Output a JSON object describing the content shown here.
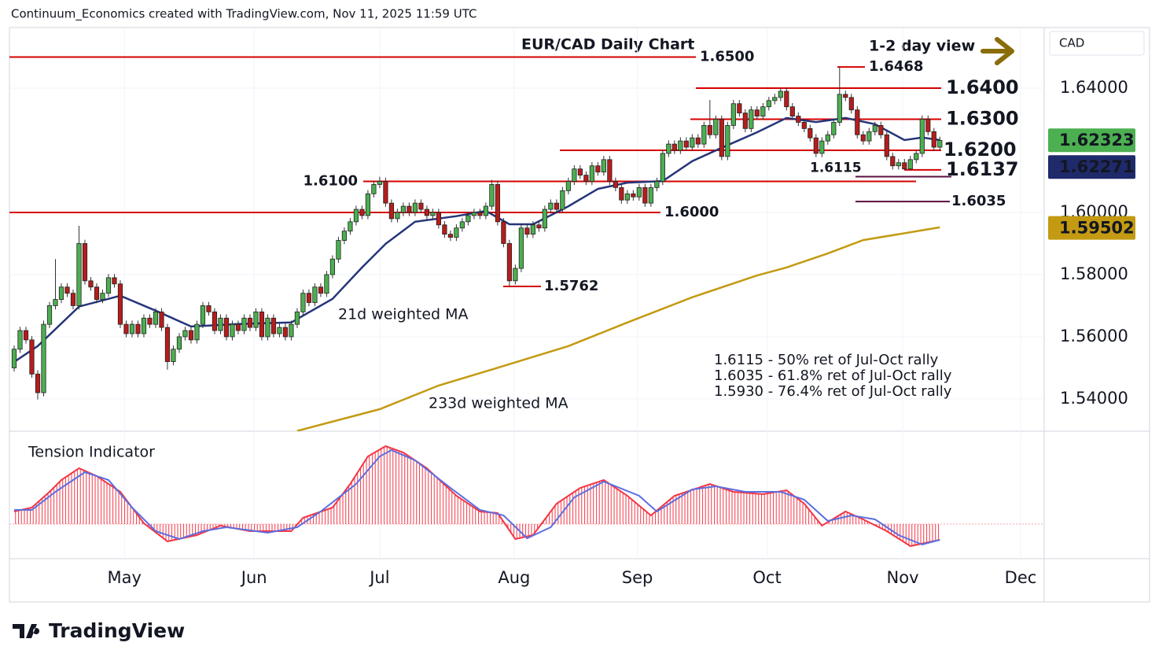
{
  "header": "Continuum_Economics created with TradingView.com, Nov 11, 2025 11:59 UTC",
  "brand": "TradingView",
  "chart_data": {
    "type": "candlestick",
    "title": "EUR/CAD Daily Chart",
    "subtitle": "1-2 day view",
    "currency": "CAD",
    "grid": true,
    "xlim": [
      -0.8,
      174.7
    ],
    "xticks": [
      {
        "value": 18.7,
        "label": "May"
      },
      {
        "value": 40.7,
        "label": "Jun"
      },
      {
        "value": 62,
        "label": "Jul"
      },
      {
        "value": 84.8,
        "label": "Aug"
      },
      {
        "value": 105.7,
        "label": "Sep"
      },
      {
        "value": 127.7,
        "label": "Oct"
      },
      {
        "value": 150.7,
        "label": "Nov"
      },
      {
        "value": 170.7,
        "label": "Dec"
      }
    ],
    "ylim": [
      1.5296,
      1.6595
    ],
    "yticks": [
      {
        "value": 1.64,
        "label": "1.64000"
      },
      {
        "value": 1.6,
        "label": "1.60000"
      },
      {
        "value": 1.58,
        "label": "1.58000"
      },
      {
        "value": 1.56,
        "label": "1.56000"
      },
      {
        "value": 1.54,
        "label": "1.54000"
      }
    ],
    "colors": {
      "up": "#4caf50",
      "down": "#b71c1c"
    },
    "open": [
      1.55,
      1.556,
      1.562,
      1.559,
      1.548,
      1.542,
      1.564,
      1.57,
      1.572,
      1.576,
      1.574,
      1.57,
      1.59,
      1.578,
      1.576,
      1.572,
      1.574,
      1.579,
      1.577,
      1.564,
      1.561,
      1.564,
      1.561,
      1.566,
      1.564,
      1.568,
      1.563,
      1.552,
      1.556,
      1.56,
      1.562,
      1.559,
      1.564,
      1.57,
      1.568,
      1.562,
      1.566,
      1.56,
      1.564,
      1.562,
      1.566,
      1.563,
      1.568,
      1.56,
      1.566,
      1.561,
      1.563,
      1.56,
      1.564,
      1.568,
      1.574,
      1.571,
      1.576,
      1.574,
      1.58,
      1.585,
      1.591,
      1.594,
      1.597,
      1.601,
      1.599,
      1.606,
      1.609,
      1.61,
      1.603,
      1.598,
      1.6,
      1.602,
      1.6,
      1.603,
      1.601,
      1.599,
      1.6,
      1.596,
      1.593,
      1.592,
      1.595,
      1.597,
      1.599,
      1.6,
      1.599,
      1.602,
      1.609,
      1.597,
      1.59,
      1.578,
      1.582,
      1.595,
      1.593,
      1.596,
      1.595,
      1.601,
      1.603,
      1.601,
      1.607,
      1.61,
      1.614,
      1.612,
      1.61,
      1.615,
      1.613,
      1.617,
      1.61,
      1.608,
      1.604,
      1.606,
      1.605,
      1.608,
      1.603,
      1.608,
      1.61,
      1.619,
      1.622,
      1.62,
      1.623,
      1.621,
      1.624,
      1.622,
      1.628,
      1.625,
      1.63,
      1.618,
      1.628,
      1.635,
      1.632,
      1.627,
      1.633,
      1.631,
      1.634,
      1.636,
      1.637,
      1.639,
      1.634,
      1.631,
      1.629,
      1.627,
      1.624,
      1.619,
      1.623,
      1.625,
      1.629,
      1.638,
      1.637,
      1.633,
      1.625,
      1.623,
      1.626,
      1.628,
      1.625,
      1.618,
      1.615,
      1.616,
      1.614,
      1.617,
      1.619,
      1.63,
      1.626,
      1.621
    ],
    "high": [
      1.5572,
      1.5632,
      1.5632,
      1.5602,
      1.5492,
      1.5652,
      1.5712,
      1.585,
      1.5772,
      1.5772,
      1.5752,
      1.5957,
      1.5912,
      1.5792,
      1.5772,
      1.5752,
      1.5802,
      1.5802,
      1.5782,
      1.5652,
      1.5652,
      1.5652,
      1.5672,
      1.5672,
      1.5692,
      1.5692,
      1.5642,
      1.5572,
      1.5612,
      1.5632,
      1.5632,
      1.5652,
      1.5712,
      1.5712,
      1.5692,
      1.5672,
      1.5672,
      1.5652,
      1.5652,
      1.5672,
      1.5672,
      1.5692,
      1.5692,
      1.5672,
      1.5672,
      1.5642,
      1.5642,
      1.5652,
      1.5692,
      1.5752,
      1.5752,
      1.5772,
      1.5772,
      1.5812,
      1.5862,
      1.5922,
      1.5952,
      1.5982,
      1.6022,
      1.6022,
      1.6072,
      1.6102,
      1.6115,
      1.6112,
      1.6042,
      1.6012,
      1.6032,
      1.6032,
      1.6042,
      1.6042,
      1.6022,
      1.6012,
      1.6012,
      1.5972,
      1.5942,
      1.5962,
      1.5982,
      1.6002,
      1.6012,
      1.6012,
      1.6032,
      1.6105,
      1.6102,
      1.5982,
      1.5912,
      1.5832,
      1.5962,
      1.5962,
      1.5972,
      1.5972,
      1.6022,
      1.6042,
      1.6042,
      1.6082,
      1.6112,
      1.6152,
      1.6152,
      1.6132,
      1.6162,
      1.6162,
      1.6182,
      1.6182,
      1.6112,
      1.6092,
      1.6072,
      1.6072,
      1.6092,
      1.6092,
      1.6092,
      1.6112,
      1.6202,
      1.6232,
      1.6232,
      1.6242,
      1.6242,
      1.6252,
      1.6252,
      1.6292,
      1.6362,
      1.6312,
      1.6312,
      1.6292,
      1.6362,
      1.6362,
      1.6332,
      1.6342,
      1.6342,
      1.6352,
      1.6372,
      1.6382,
      1.64,
      1.6402,
      1.6352,
      1.6322,
      1.6302,
      1.6282,
      1.6252,
      1.6242,
      1.6262,
      1.6302,
      1.6468,
      1.6392,
      1.6382,
      1.6342,
      1.6262,
      1.6272,
      1.6292,
      1.6292,
      1.6262,
      1.6192,
      1.6172,
      1.6172,
      1.6182,
      1.6202,
      1.6312,
      1.6312,
      1.6272,
      1.6244
    ],
    "low": [
      1.5488,
      1.5548,
      1.5578,
      1.5468,
      1.5398,
      1.5408,
      1.5628,
      1.5688,
      1.5708,
      1.5728,
      1.5688,
      1.5688,
      1.5768,
      1.5748,
      1.5708,
      1.5708,
      1.5728,
      1.5758,
      1.5628,
      1.5598,
      1.5598,
      1.5598,
      1.5598,
      1.5628,
      1.5628,
      1.5618,
      1.5494,
      1.5508,
      1.5548,
      1.5588,
      1.5578,
      1.5578,
      1.5628,
      1.5668,
      1.5608,
      1.5608,
      1.5588,
      1.5588,
      1.5608,
      1.5608,
      1.5618,
      1.5618,
      1.5588,
      1.5588,
      1.5598,
      1.5598,
      1.5588,
      1.5588,
      1.5628,
      1.5668,
      1.5698,
      1.5698,
      1.5728,
      1.5728,
      1.5788,
      1.5838,
      1.5898,
      1.5928,
      1.5958,
      1.5978,
      1.5978,
      1.6048,
      1.6078,
      1.6018,
      1.5968,
      1.5968,
      1.5988,
      1.5988,
      1.5988,
      1.5998,
      1.5978,
      1.5978,
      1.5948,
      1.5918,
      1.5908,
      1.5908,
      1.5938,
      1.5958,
      1.5978,
      1.5978,
      1.5978,
      1.6008,
      1.5958,
      1.5888,
      1.5762,
      1.5768,
      1.5808,
      1.5918,
      1.5918,
      1.5938,
      1.5938,
      1.5998,
      1.5998,
      1.5998,
      1.6058,
      1.6088,
      1.6108,
      1.6088,
      1.6088,
      1.6118,
      1.6118,
      1.6088,
      1.6068,
      1.6028,
      1.6028,
      1.6038,
      1.6038,
      1.6018,
      1.6018,
      1.6068,
      1.6088,
      1.6178,
      1.6188,
      1.6188,
      1.6198,
      1.6198,
      1.6208,
      1.6208,
      1.6238,
      1.6238,
      1.6168,
      1.6168,
      1.6268,
      1.6308,
      1.6258,
      1.6258,
      1.6298,
      1.6298,
      1.6328,
      1.6348,
      1.6358,
      1.6328,
      1.6298,
      1.6278,
      1.6258,
      1.6228,
      1.6178,
      1.6178,
      1.6218,
      1.6238,
      1.6278,
      1.6358,
      1.6318,
      1.6238,
      1.6218,
      1.6218,
      1.6248,
      1.6238,
      1.6168,
      1.6138,
      1.6138,
      1.6137,
      1.6137,
      1.6158,
      1.6178,
      1.6248,
      1.6198,
      1.6198
    ],
    "close": [
      1.556,
      1.562,
      1.559,
      1.548,
      1.542,
      1.564,
      1.57,
      1.572,
      1.576,
      1.574,
      1.57,
      1.59,
      1.578,
      1.576,
      1.572,
      1.574,
      1.579,
      1.577,
      1.564,
      1.561,
      1.564,
      1.561,
      1.566,
      1.564,
      1.568,
      1.563,
      1.552,
      1.556,
      1.56,
      1.562,
      1.559,
      1.564,
      1.57,
      1.568,
      1.562,
      1.566,
      1.56,
      1.564,
      1.562,
      1.566,
      1.563,
      1.568,
      1.56,
      1.566,
      1.561,
      1.563,
      1.56,
      1.564,
      1.568,
      1.574,
      1.571,
      1.576,
      1.574,
      1.58,
      1.585,
      1.591,
      1.594,
      1.597,
      1.601,
      1.599,
      1.606,
      1.609,
      1.61,
      1.603,
      1.598,
      1.6,
      1.602,
      1.6,
      1.603,
      1.601,
      1.599,
      1.6,
      1.596,
      1.593,
      1.592,
      1.595,
      1.597,
      1.599,
      1.6,
      1.599,
      1.602,
      1.609,
      1.597,
      1.59,
      1.578,
      1.582,
      1.595,
      1.593,
      1.596,
      1.595,
      1.601,
      1.603,
      1.601,
      1.607,
      1.61,
      1.614,
      1.612,
      1.61,
      1.615,
      1.613,
      1.617,
      1.61,
      1.608,
      1.604,
      1.606,
      1.605,
      1.608,
      1.603,
      1.608,
      1.61,
      1.619,
      1.622,
      1.62,
      1.623,
      1.621,
      1.624,
      1.622,
      1.628,
      1.625,
      1.63,
      1.618,
      1.628,
      1.635,
      1.632,
      1.627,
      1.633,
      1.631,
      1.634,
      1.636,
      1.637,
      1.639,
      1.634,
      1.631,
      1.629,
      1.627,
      1.624,
      1.619,
      1.623,
      1.625,
      1.629,
      1.638,
      1.637,
      1.633,
      1.625,
      1.623,
      1.626,
      1.628,
      1.625,
      1.618,
      1.615,
      1.616,
      1.614,
      1.617,
      1.619,
      1.63,
      1.626,
      1.621,
      1.6232
    ],
    "series": [
      {
        "name": "21d weighted MA",
        "color": "#25357a",
        "x": [
          0,
          4,
          11,
          18,
          24,
          30,
          38,
          47,
          54,
          59,
          63,
          68,
          75,
          80,
          84,
          88,
          94,
          99,
          104,
          110,
          115,
          120,
          126,
          131,
          136,
          141,
          146,
          151,
          154,
          157
        ],
        "values": [
          1.5519,
          1.557,
          1.5697,
          1.5732,
          1.5684,
          1.5633,
          1.5641,
          1.5646,
          1.5722,
          1.5823,
          1.5899,
          1.597,
          1.5988,
          1.6005,
          1.5962,
          1.5962,
          1.602,
          1.6076,
          1.6096,
          1.6101,
          1.6165,
          1.6208,
          1.6258,
          1.6304,
          1.6291,
          1.6304,
          1.6284,
          1.6233,
          1.6241,
          1.6233
        ]
      },
      {
        "name": "233d weighted MA",
        "color": "#c39a12",
        "x": [
          48,
          62,
          72,
          83,
          94,
          104,
          115,
          126,
          131,
          138,
          144,
          157
        ],
        "values": [
          1.5297,
          1.5367,
          1.5443,
          1.5506,
          1.557,
          1.5646,
          1.5727,
          1.5797,
          1.5823,
          1.5868,
          1.5911,
          1.5952
        ]
      }
    ],
    "levels": [
      {
        "value": 1.65,
        "label": "1.6500",
        "color": "#d50000"
      },
      {
        "value": 1.6468,
        "label": "1.6468",
        "color": "#d50000"
      },
      {
        "value": 1.64,
        "label": "1.6400",
        "color": "#d50000"
      },
      {
        "value": 1.63,
        "label": "1.6300",
        "color": "#d50000"
      },
      {
        "value": 1.62,
        "label": "1.6200",
        "color": "#d50000"
      },
      {
        "value": 1.6137,
        "label": "1.6137",
        "color": "#d50000"
      },
      {
        "value": 1.6115,
        "label": "1.6115",
        "color": "#7b1a55"
      },
      {
        "value": 1.61,
        "label": "1.6100",
        "color": "#d50000"
      },
      {
        "value": 1.6035,
        "label": "1.6035",
        "color": "#7b1a55"
      },
      {
        "value": 1.6,
        "label": "1.6000",
        "color": "#d50000"
      },
      {
        "value": 1.5762,
        "label": "1.5762",
        "color": "#d50000"
      }
    ],
    "badges": [
      {
        "value": 1.62323,
        "label": "1.62323",
        "color": "#4caf50"
      },
      {
        "value": 1.62271,
        "label": "1.62271",
        "color": "#1f2a6b"
      },
      {
        "value": 1.59502,
        "label": "1.59502",
        "color": "#c39a12"
      }
    ],
    "notes": [
      "1.6115 - 50% ret of Jul-Oct rally",
      "1.6035 - 61.8% ret of Jul-Oct rally",
      "1.5930 - 76.4% ret of Jul-Oct rally"
    ],
    "indicator": {
      "title": "Tension Indicator",
      "ylim": [
        -44,
        106
      ],
      "series": [
        {
          "color": "#f23645",
          "x": [
            0,
            3,
            6,
            8,
            11,
            14,
            18,
            22,
            26,
            31,
            35,
            40,
            47,
            49,
            54,
            57,
            60,
            63,
            66,
            70,
            75,
            79,
            82,
            85,
            88,
            92,
            96,
            100,
            104,
            108,
            112,
            118,
            122,
            127,
            131,
            134,
            137,
            141,
            144,
            148,
            152,
            157
          ],
          "values": [
            16,
            21,
            41,
            56,
            71,
            61,
            41,
            1,
            -22,
            -14,
            -2,
            -9,
            -9,
            8,
            21,
            51,
            86,
            99,
            91,
            71,
            36,
            16,
            14,
            -19,
            -14,
            26,
            46,
            56,
            36,
            11,
            36,
            51,
            41,
            38,
            43,
            26,
            -2,
            16,
            6,
            -9,
            -28,
            -20
          ]
        },
        {
          "color": "#5b6ee1",
          "x": [
            0,
            3,
            7,
            12,
            16,
            20,
            24,
            28,
            32,
            36,
            43,
            48,
            52,
            58,
            62,
            64,
            68,
            74,
            79,
            83,
            87,
            91,
            95,
            100,
            106,
            109,
            115,
            119,
            124,
            130,
            134,
            138,
            142,
            146,
            150,
            154,
            157
          ],
          "values": [
            18,
            18,
            41,
            66,
            56,
            21,
            -9,
            -19,
            -9,
            -4,
            -11,
            -4,
            16,
            51,
            86,
            94,
            81,
            46,
            18,
            11,
            -18,
            -4,
            34,
            54,
            36,
            16,
            44,
            48,
            41,
            41,
            31,
            4,
            11,
            6,
            -14,
            -26,
            -20
          ]
        }
      ]
    }
  }
}
